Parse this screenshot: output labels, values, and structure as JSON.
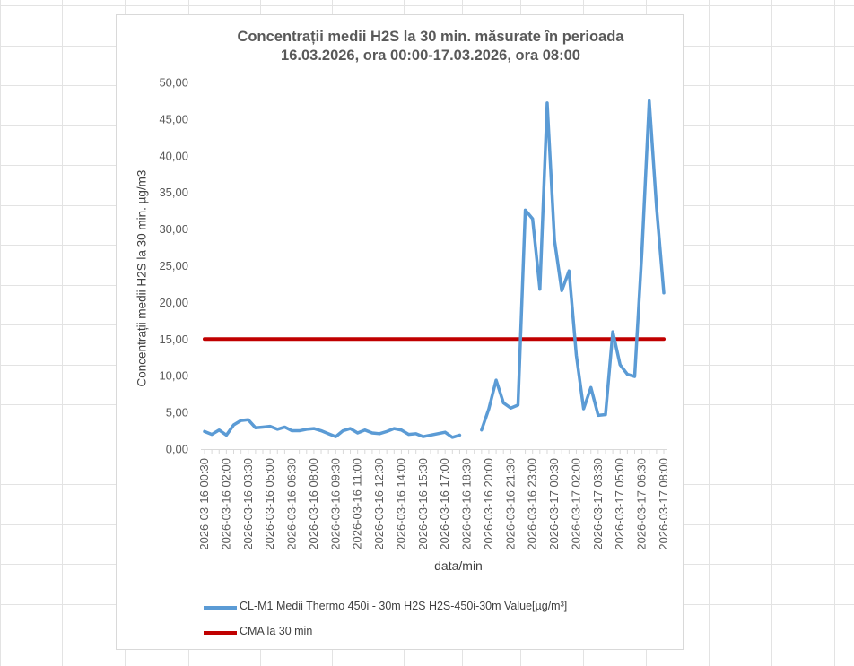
{
  "chart_data": {
    "type": "line",
    "title": "Concentrații medii H2S la 30 min. măsurate în perioada",
    "subtitle": "16.03.2026, ora 00:00-17.03.2026, ora 08:00",
    "xlabel": "data/min",
    "ylabel": "Concentrații medii H2S la 30 min. µg/m3",
    "ylim": [
      0,
      50
    ],
    "yticks": [
      "0,00",
      "5,00",
      "10,00",
      "15,00",
      "20,00",
      "25,00",
      "30,00",
      "35,00",
      "40,00",
      "45,00",
      "50,00"
    ],
    "grid": false,
    "legend_position": "bottom",
    "x": [
      "2026-03-16 00:30",
      "2026-03-16 01:00",
      "2026-03-16 01:30",
      "2026-03-16 02:00",
      "2026-03-16 02:30",
      "2026-03-16 03:00",
      "2026-03-16 03:30",
      "2026-03-16 04:00",
      "2026-03-16 04:30",
      "2026-03-16 05:00",
      "2026-03-16 05:30",
      "2026-03-16 06:00",
      "2026-03-16 06:30",
      "2026-03-16 07:00",
      "2026-03-16 07:30",
      "2026-03-16 08:00",
      "2026-03-16 08:30",
      "2026-03-16 09:00",
      "2026-03-16 09:30",
      "2026-03-16 10:00",
      "2026-03-16 10:30",
      "2026-03-16 11:00",
      "2026-03-16 11:30",
      "2026-03-16 12:00",
      "2026-03-16 12:30",
      "2026-03-16 13:00",
      "2026-03-16 13:30",
      "2026-03-16 14:00",
      "2026-03-16 14:30",
      "2026-03-16 15:00",
      "2026-03-16 15:30",
      "2026-03-16 16:00",
      "2026-03-16 16:30",
      "2026-03-16 17:00",
      "2026-03-16 17:30",
      "2026-03-16 18:00",
      "2026-03-16 18:30",
      "2026-03-16 19:00",
      "2026-03-16 19:30",
      "2026-03-16 20:00",
      "2026-03-16 20:30",
      "2026-03-16 21:00",
      "2026-03-16 21:30",
      "2026-03-16 22:00",
      "2026-03-16 22:30",
      "2026-03-16 23:00",
      "2026-03-16 23:30",
      "2026-03-17 00:00",
      "2026-03-17 00:30",
      "2026-03-17 01:00",
      "2026-03-17 01:30",
      "2026-03-17 02:00",
      "2026-03-17 02:30",
      "2026-03-17 03:00",
      "2026-03-17 03:30",
      "2026-03-17 04:00",
      "2026-03-17 04:30",
      "2026-03-17 05:00",
      "2026-03-17 05:30",
      "2026-03-17 06:00",
      "2026-03-17 06:30",
      "2026-03-17 07:00",
      "2026-03-17 07:30",
      "2026-03-17 08:00"
    ],
    "x_tick_labels": [
      "2026-03-16 00:30",
      "2026-03-16 02:00",
      "2026-03-16 03:30",
      "2026-03-16 05:00",
      "2026-03-16 06:30",
      "2026-03-16 08:00",
      "2026-03-16 09:30",
      "2026-03-16 11:00",
      "2026-03-16 12:30",
      "2026-03-16 14:00",
      "2026-03-16 15:30",
      "2026-03-16 17:00",
      "2026-03-16 18:30",
      "2026-03-16 20:00",
      "2026-03-16 21:30",
      "2026-03-16 23:00",
      "2026-03-17 00:30",
      "2026-03-17 02:00",
      "2026-03-17 03:30",
      "2026-03-17 05:00",
      "2026-03-17 06:30",
      "2026-03-17 08:00"
    ],
    "series": [
      {
        "name": "CL-M1 Medii Thermo 450i - 30m H2S H2S-450i-30m Value[µg/m³]",
        "color": "#5b9bd5",
        "values": [
          2.4,
          2.0,
          2.6,
          1.9,
          3.3,
          3.9,
          4.0,
          2.9,
          3.0,
          3.1,
          2.7,
          3.0,
          2.5,
          2.5,
          2.7,
          2.8,
          2.5,
          2.1,
          1.7,
          2.5,
          2.8,
          2.2,
          2.6,
          2.2,
          2.1,
          2.4,
          2.8,
          2.6,
          2.0,
          2.1,
          1.7,
          1.9,
          2.1,
          2.3,
          1.6,
          1.9,
          null,
          null,
          2.6,
          5.5,
          9.4,
          6.3,
          5.6,
          6.0,
          32.6,
          31.4,
          21.8,
          47.2,
          28.5,
          21.6,
          24.3,
          12.8,
          5.5,
          8.4,
          4.6,
          4.7,
          16.0,
          11.5,
          10.2,
          9.9,
          27.0,
          47.5,
          33.0,
          21.3
        ]
      },
      {
        "name": "CMA la 30 min",
        "color": "#c00000",
        "values": [
          15,
          15,
          15,
          15,
          15,
          15,
          15,
          15,
          15,
          15,
          15,
          15,
          15,
          15,
          15,
          15,
          15,
          15,
          15,
          15,
          15,
          15,
          15,
          15,
          15,
          15,
          15,
          15,
          15,
          15,
          15,
          15,
          15,
          15,
          15,
          15,
          15,
          15,
          15,
          15,
          15,
          15,
          15,
          15,
          15,
          15,
          15,
          15,
          15,
          15,
          15,
          15,
          15,
          15,
          15,
          15,
          15,
          15,
          15,
          15,
          15,
          15,
          15,
          15
        ]
      }
    ]
  }
}
